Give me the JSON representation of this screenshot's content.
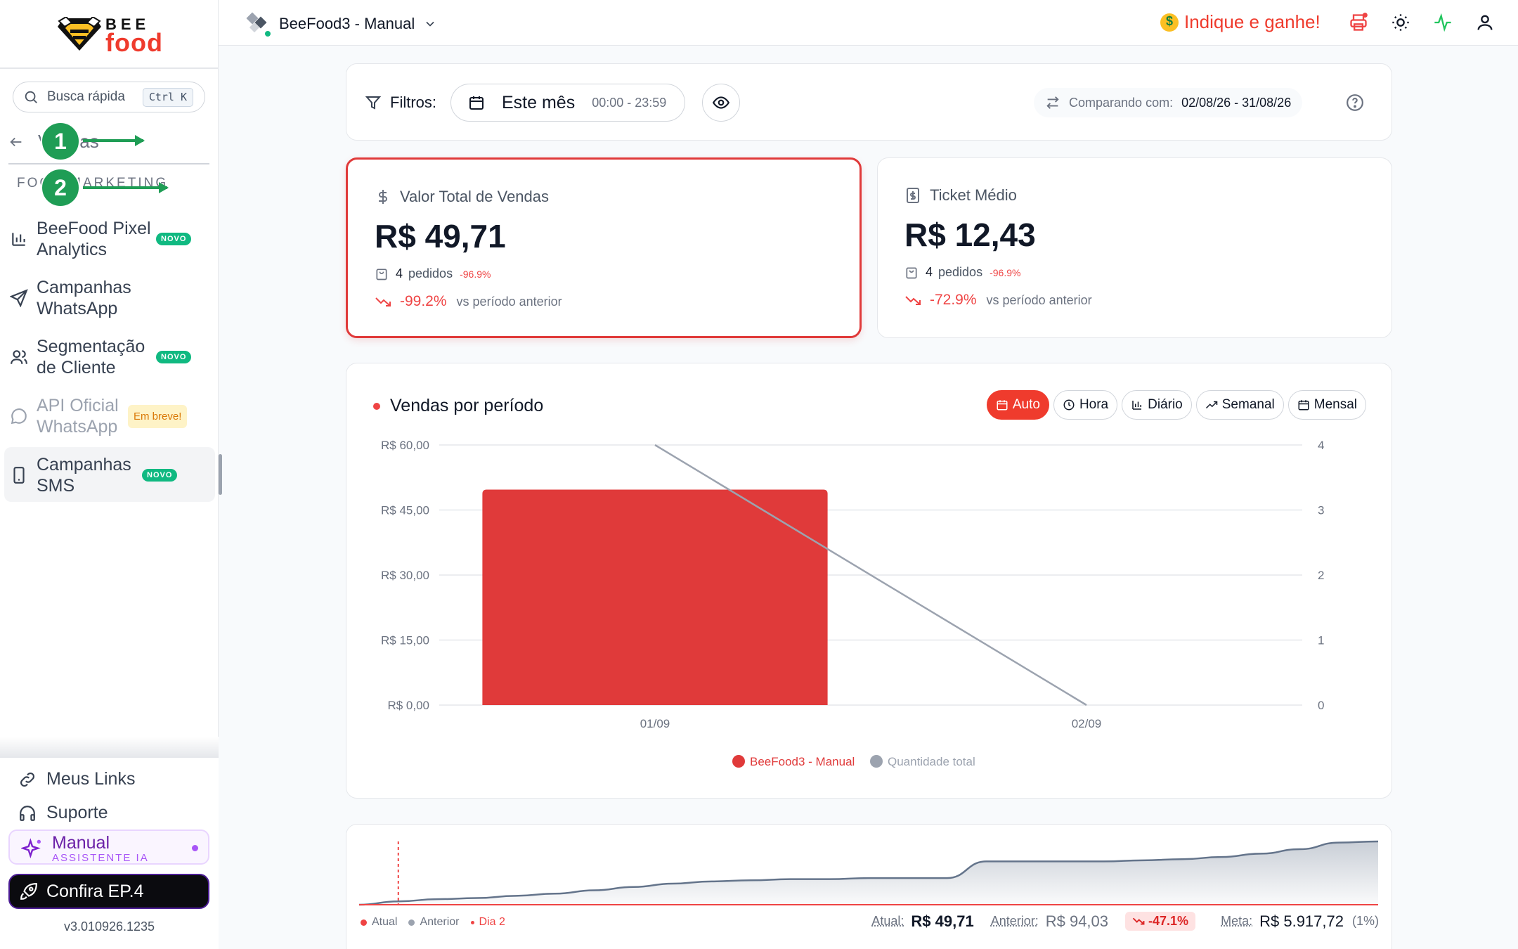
{
  "brand": {
    "line1": "BEE",
    "line2": "food"
  },
  "sidebar": {
    "search_placeholder": "Busca rápida",
    "search_shortcut": "Ctrl K",
    "back_label": "Vendas",
    "section_title": "FOCO MARKETING",
    "items": [
      {
        "label": "BeeFood Pixel Analytics",
        "badge": "NOVO",
        "icon": "bar-chart-icon"
      },
      {
        "label": "Campanhas WhatsApp",
        "badge": "",
        "icon": "send-icon"
      },
      {
        "label": "Segmentação de Cliente",
        "badge": "NOVO",
        "icon": "users-icon"
      },
      {
        "label": "API Oficial WhatsApp",
        "badge": "Em breve!",
        "icon": "message-circle-icon"
      },
      {
        "label": "Campanhas SMS",
        "badge": "NOVO",
        "icon": "smartphone-icon"
      }
    ],
    "bottom_links": [
      {
        "label": "Meus Links",
        "icon": "link-icon"
      },
      {
        "label": "Suporte",
        "icon": "headphones-icon"
      }
    ],
    "assistant": {
      "title": "Manual",
      "subtitle": "ASSISTENTE IA"
    },
    "promo": "Confira EP.4",
    "version": "v3.010926.1235"
  },
  "annotations": {
    "step1": "1",
    "step2": "2"
  },
  "topbar": {
    "store_name": "BeeFood3 - Manual",
    "referral": "Indique e ganhe!",
    "colors": {
      "referral": "#ef3b2d",
      "activity": "#22c55e"
    }
  },
  "filters": {
    "label": "Filtros:",
    "period": "Este mês",
    "hours": "00:00 - 23:59",
    "compare_label": "Comparando com:",
    "compare_range": "02/08/26 - 31/08/26"
  },
  "kpis": [
    {
      "title": "Valor Total de Vendas",
      "value": "R$ 49,71",
      "orders_count": "4",
      "orders_label": "pedidos",
      "orders_delta": "-96.9%",
      "change": "-99.2%",
      "change_label": "vs período anterior"
    },
    {
      "title": "Ticket Médio",
      "value": "R$ 12,43",
      "orders_count": "4",
      "orders_label": "pedidos",
      "orders_delta": "-96.9%",
      "change": "-72.9%",
      "change_label": "vs período anterior"
    }
  ],
  "sales_chart": {
    "title": "Vendas por período",
    "granularity": [
      "Auto",
      "Hora",
      "Diário",
      "Semanal",
      "Mensal"
    ],
    "selected_granularity": "Auto"
  },
  "chart_data": {
    "type": "bar",
    "categories": [
      "01/09",
      "02/09"
    ],
    "series": [
      {
        "name": "BeeFood3 - Manual",
        "type": "bar",
        "axis": "left",
        "values": [
          49.71,
          0
        ],
        "color": "#e03a3a"
      },
      {
        "name": "Quantidade total",
        "type": "line",
        "axis": "right",
        "values": [
          4,
          0
        ],
        "color": "#9ca3af"
      }
    ],
    "y_left_ticks": [
      "R$ 0,00",
      "R$ 15,00",
      "R$ 30,00",
      "R$ 45,00",
      "R$ 60,00"
    ],
    "y_left_range": [
      0,
      60
    ],
    "y_right_ticks": [
      "0",
      "1",
      "2",
      "3",
      "4"
    ],
    "y_right_range": [
      0,
      4
    ],
    "grid": true,
    "legend_position": "bottom-center"
  },
  "progress": {
    "legend": [
      "Atual",
      "Anterior",
      "Dia 2"
    ],
    "atual_label": "Atual:",
    "atual_value": "R$ 49,71",
    "anterior_label": "Anterior:",
    "anterior_value": "R$ 94,03",
    "delta": "-47.1%",
    "meta_label": "Meta:",
    "meta_value": "R$ 5.917,72",
    "meta_percent": "(1%)",
    "cumulative_previous": [
      0,
      0.3,
      0.5,
      0.6,
      0.8,
      1.0,
      1.3,
      1.6,
      1.9,
      2.1,
      2.2,
      2.3,
      2.3,
      2.4,
      2.4,
      2.4,
      3.9,
      3.9,
      3.9,
      3.9,
      4.0,
      4.1,
      4.3,
      4.6,
      5.0,
      5.6,
      5.7
    ]
  }
}
